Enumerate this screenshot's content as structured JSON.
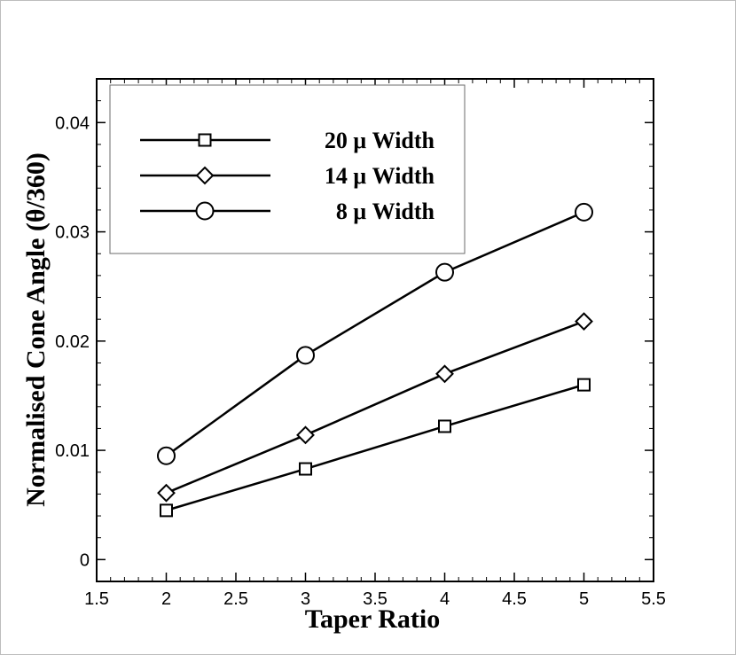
{
  "chart_data": {
    "type": "line",
    "xlabel": "Taper Ratio",
    "ylabel": "Normalised Cone Angle (θ/360)",
    "xlim": [
      1.5,
      5.5
    ],
    "ylim": [
      -0.002,
      0.044
    ],
    "x_ticks": [
      "1.5",
      "2",
      "2.5",
      "3",
      "3.5",
      "4",
      "4.5",
      "5",
      "5.5"
    ],
    "y_ticks": [
      "0",
      "0.01",
      "0.02",
      "0.03",
      "0.04"
    ],
    "grid": false,
    "legend_position": "top-left",
    "x": [
      2,
      3,
      4,
      5
    ],
    "series": [
      {
        "name": "20 μ Width",
        "marker": "square",
        "values": [
          0.0045,
          0.0083,
          0.0122,
          0.016
        ]
      },
      {
        "name": "14 μ Width",
        "marker": "diamond",
        "values": [
          0.0061,
          0.0114,
          0.017,
          0.0218
        ]
      },
      {
        "name": "8 μ Width",
        "marker": "circle",
        "values": [
          0.0095,
          0.0187,
          0.0263,
          0.0318
        ]
      }
    ],
    "line_color": "#000000"
  }
}
